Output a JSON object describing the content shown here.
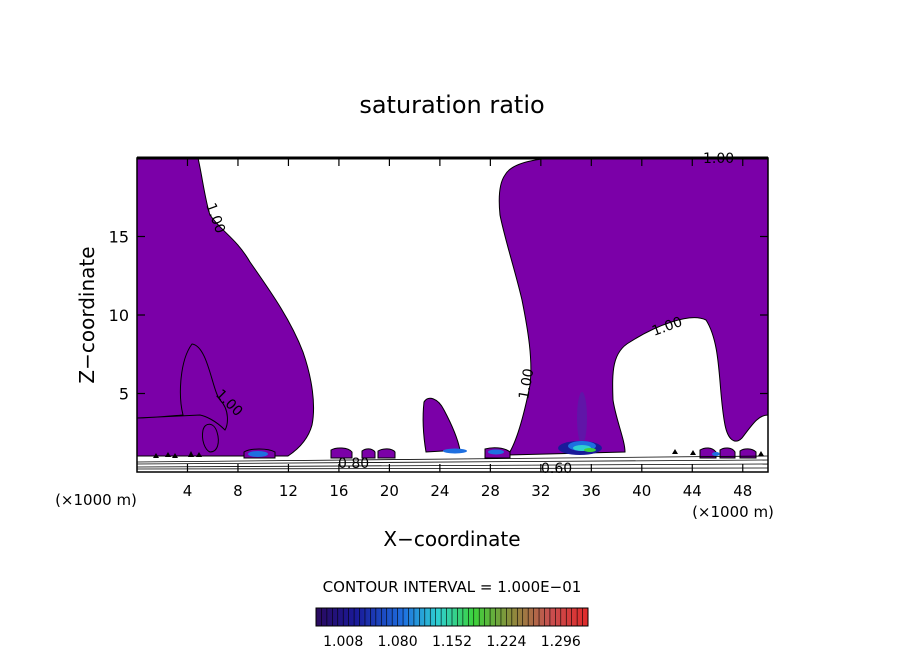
{
  "chart_data": {
    "type": "heatmap",
    "title": "saturation ratio",
    "xlabel": "X−coordinate",
    "ylabel": "Z−coordinate",
    "x_unit_left": "(×1000 m)",
    "x_unit_right": "(×1000 m)",
    "xlim": [
      0,
      50
    ],
    "ylim": [
      0,
      20
    ],
    "x_ticks": [
      "4",
      "8",
      "12",
      "16",
      "20",
      "24",
      "28",
      "32",
      "36",
      "40",
      "44",
      "48"
    ],
    "y_ticks": [
      "5",
      "10",
      "15"
    ],
    "x_tick_values": [
      4,
      8,
      12,
      16,
      20,
      24,
      28,
      32,
      36,
      40,
      44,
      48
    ],
    "y_tick_values": [
      5,
      10,
      15
    ],
    "contour_labels": [
      "1.00",
      "1.00",
      "1.00",
      "1.00",
      "1.00",
      "0.80",
      "0.60"
    ],
    "contour_interval": "CONTOUR INTERVAL =  1.000E−01",
    "colorbar_ticks": [
      "1.008",
      "1.080",
      "1.152",
      "1.224",
      "1.296"
    ],
    "colorbar_range": [
      0.972,
      1.332
    ],
    "colors": {
      "fill": "#7b00a8",
      "low": "#2a0a5e",
      "mid_blue": "#1e6fe0",
      "cyan": "#2fd0d0",
      "green": "#3cd23c",
      "red": "#e02a2a"
    }
  }
}
